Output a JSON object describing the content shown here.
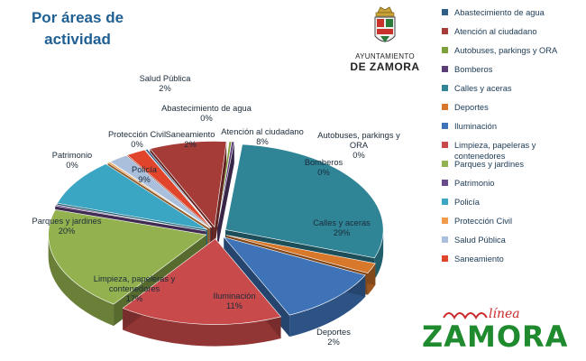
{
  "title": "Por áreas de actividad",
  "logo": {
    "line1": "AYUNTAMIENTO",
    "line2": "DE ZAMORA"
  },
  "brand": {
    "script": "línea",
    "word": "ZAMORA"
  },
  "chart_data": {
    "type": "pie",
    "title": "Por áreas de actividad",
    "legend": "right",
    "categories": [
      "Abastecimiento de agua",
      "Atención al ciudadano",
      "Autobuses, parkings y ORA",
      "Bomberos",
      "Calles y aceras",
      "Deportes",
      "Iluminación",
      "Limpieza, papeleras y contenedores",
      "Parques y jardines",
      "Patrimonio",
      "Policía",
      "Protección Civil",
      "Salud Pública",
      "Saneamiento"
    ],
    "values": [
      0,
      8,
      0,
      0,
      29,
      2,
      11,
      17,
      20,
      0,
      9,
      0,
      2,
      2
    ],
    "value_labels": [
      "0%",
      "8%",
      "0%",
      "0%",
      "29%",
      "2%",
      "11%",
      "17%",
      "20%",
      "0%",
      "9%",
      "0%",
      "2%",
      "2%"
    ],
    "colors": [
      "#2e5f8a",
      "#a53c37",
      "#7ea03a",
      "#5c3d78",
      "#2f8496",
      "#d8782b",
      "#3f73b8",
      "#c94a4a",
      "#93b24f",
      "#6a4a8a",
      "#3aa6c4",
      "#ef9b4a",
      "#a9bfdc",
      "#e0442a"
    ]
  }
}
